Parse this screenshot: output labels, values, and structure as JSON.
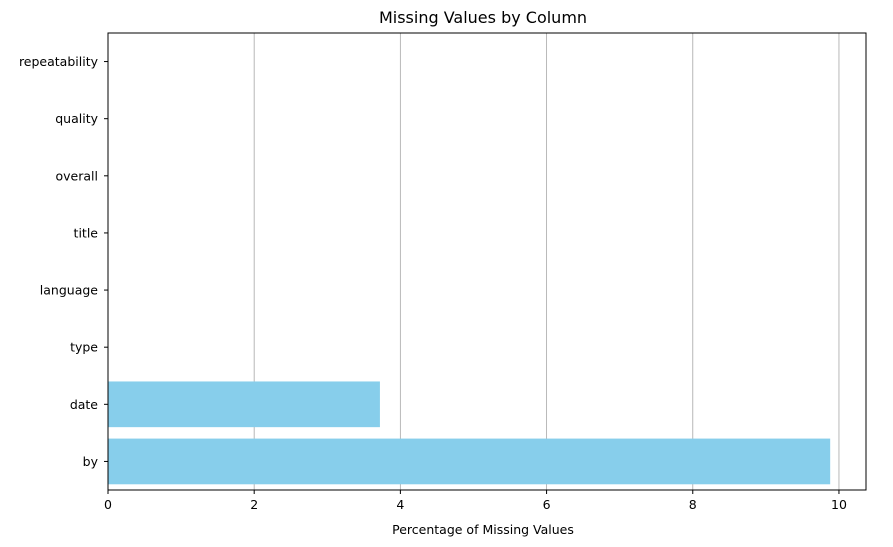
{
  "chart_data": {
    "type": "bar",
    "orientation": "horizontal",
    "title": "Missing Values by Column",
    "xlabel": "Percentage of Missing Values",
    "ylabel": "",
    "categories": [
      "by",
      "date",
      "type",
      "language",
      "title",
      "overall",
      "quality",
      "repeatability"
    ],
    "values": [
      9.88,
      3.72,
      0,
      0,
      0,
      0,
      0,
      0
    ],
    "xlim": [
      0,
      10.37
    ],
    "xticks": [
      "0",
      "2",
      "4",
      "6",
      "8",
      "10"
    ],
    "xtick_values": [
      0,
      2,
      4,
      6,
      8,
      10
    ],
    "grid": "x-axis only",
    "bar_color": "#87ceeb",
    "grid_color": "#b0b0b0"
  }
}
